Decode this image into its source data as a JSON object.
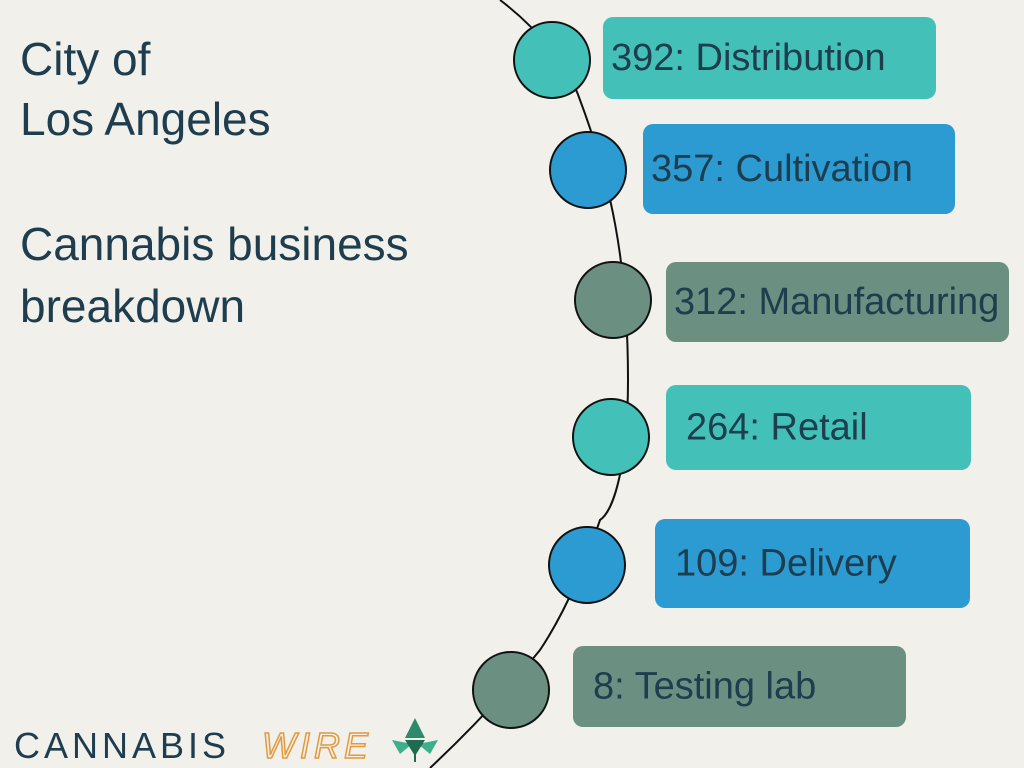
{
  "header": {
    "title_lines": [
      "City of",
      "Los Angeles"
    ],
    "subtitle_lines": [
      "Cannabis business",
      "breakdown"
    ]
  },
  "items": [
    {
      "text": "392: Distribution"
    },
    {
      "text": "357: Cultivation"
    },
    {
      "text": "312: Manufacturing"
    },
    {
      "text": "264: Retail"
    },
    {
      "text": "109: Delivery"
    },
    {
      "text": "8: Testing lab"
    }
  ],
  "logo": {
    "first": "CANNABIS",
    "second": "WIRE"
  }
}
